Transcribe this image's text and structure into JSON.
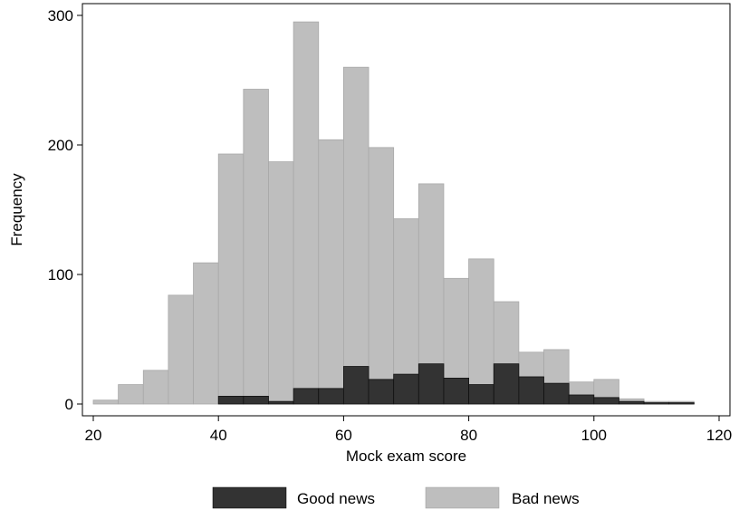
{
  "chart_data": {
    "type": "bar",
    "subtype": "overlaid-histogram",
    "title": "",
    "xlabel": "Mock exam score",
    "ylabel": "Frequency",
    "xlim": [
      20,
      120
    ],
    "ylim": [
      0,
      300
    ],
    "x_ticks": [
      20,
      40,
      60,
      80,
      100,
      120
    ],
    "y_ticks": [
      0,
      100,
      200,
      300
    ],
    "bin_width": 4,
    "bin_starts": [
      20,
      24,
      28,
      32,
      36,
      40,
      44,
      48,
      52,
      56,
      60,
      64,
      68,
      72,
      76,
      80,
      84,
      88,
      92,
      96,
      100,
      104,
      108,
      112
    ],
    "grid": false,
    "legend_position": "bottom",
    "series": [
      {
        "name": "Bad news",
        "color": "#bebebe",
        "values": [
          3,
          15,
          26,
          84,
          109,
          193,
          243,
          187,
          295,
          204,
          260,
          198,
          143,
          170,
          97,
          112,
          79,
          40,
          42,
          17,
          19,
          4,
          2,
          2
        ]
      },
      {
        "name": "Good news",
        "color": "#333333",
        "values": [
          0,
          0,
          0,
          0,
          0,
          6,
          6,
          2,
          12,
          12,
          29,
          19,
          23,
          31,
          20,
          15,
          31,
          21,
          16,
          7,
          5,
          2,
          1,
          1
        ]
      }
    ]
  },
  "legend": {
    "items": [
      {
        "label": "Good news",
        "color": "#333333"
      },
      {
        "label": "Bad news",
        "color": "#bebebe"
      }
    ]
  }
}
